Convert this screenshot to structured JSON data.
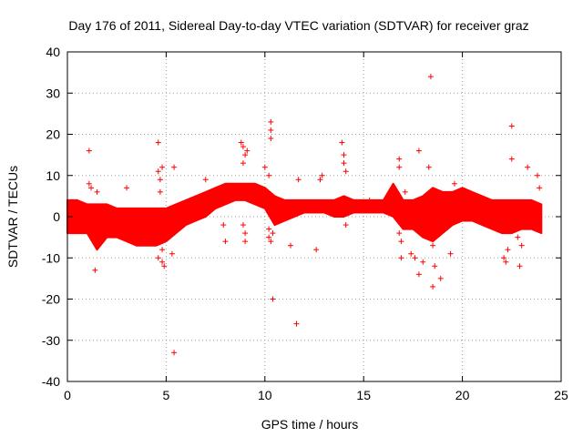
{
  "chart_data": {
    "type": "scatter",
    "title": "Day 176 of 2011, Sidereal Day-to-day VTEC variation (SDTVAR) for receiver graz",
    "xlabel": "GPS time / hours",
    "ylabel": "SDTVAR / TECUs",
    "xlim": [
      0,
      25
    ],
    "ylim": [
      -40,
      40
    ],
    "x_ticks": [
      0,
      5,
      10,
      15,
      20,
      25
    ],
    "x_tick_labels": [
      "0",
      "5",
      "10",
      "15",
      "20",
      "25"
    ],
    "y_ticks": [
      -40,
      -30,
      -20,
      -10,
      0,
      10,
      20,
      30,
      40
    ],
    "y_tick_labels": [
      "-40",
      "-30",
      "-20",
      "-10",
      "0",
      "10",
      "20",
      "30",
      "40"
    ],
    "grid": true,
    "marker": "+",
    "color": "#ff0000",
    "series": [
      {
        "name": "SDTVAR",
        "band": [
          {
            "x": 0.0,
            "lo": -4,
            "hi": 4
          },
          {
            "x": 0.5,
            "lo": -4,
            "hi": 4
          },
          {
            "x": 1.0,
            "lo": -4,
            "hi": 3
          },
          {
            "x": 1.5,
            "lo": -8,
            "hi": 3
          },
          {
            "x": 2.0,
            "lo": -5,
            "hi": 3
          },
          {
            "x": 2.5,
            "lo": -5,
            "hi": 2
          },
          {
            "x": 3.0,
            "lo": -6,
            "hi": 2
          },
          {
            "x": 3.5,
            "lo": -7,
            "hi": 2
          },
          {
            "x": 4.0,
            "lo": -7,
            "hi": 2
          },
          {
            "x": 4.5,
            "lo": -7,
            "hi": 2
          },
          {
            "x": 5.0,
            "lo": -6,
            "hi": 2
          },
          {
            "x": 5.5,
            "lo": -4,
            "hi": 3
          },
          {
            "x": 6.0,
            "lo": -2,
            "hi": 4
          },
          {
            "x": 6.5,
            "lo": -1,
            "hi": 5
          },
          {
            "x": 7.0,
            "lo": 0,
            "hi": 6
          },
          {
            "x": 7.5,
            "lo": 2,
            "hi": 7
          },
          {
            "x": 8.0,
            "lo": 3,
            "hi": 8
          },
          {
            "x": 8.5,
            "lo": 4,
            "hi": 8
          },
          {
            "x": 9.0,
            "lo": 4,
            "hi": 8
          },
          {
            "x": 9.5,
            "lo": 3,
            "hi": 8
          },
          {
            "x": 10.0,
            "lo": 2,
            "hi": 7
          },
          {
            "x": 10.5,
            "lo": -2,
            "hi": 5
          },
          {
            "x": 11.0,
            "lo": -1,
            "hi": 4
          },
          {
            "x": 11.5,
            "lo": 0,
            "hi": 4
          },
          {
            "x": 12.0,
            "lo": 1,
            "hi": 4
          },
          {
            "x": 12.5,
            "lo": 1,
            "hi": 4
          },
          {
            "x": 13.0,
            "lo": 1,
            "hi": 4
          },
          {
            "x": 13.5,
            "lo": 0,
            "hi": 4
          },
          {
            "x": 14.0,
            "lo": 0,
            "hi": 5
          },
          {
            "x": 14.5,
            "lo": 1,
            "hi": 4
          },
          {
            "x": 15.0,
            "lo": 1,
            "hi": 4
          },
          {
            "x": 15.5,
            "lo": 1,
            "hi": 4
          },
          {
            "x": 16.0,
            "lo": 1,
            "hi": 4
          },
          {
            "x": 16.5,
            "lo": 0,
            "hi": 8
          },
          {
            "x": 17.0,
            "lo": -3,
            "hi": 4
          },
          {
            "x": 17.5,
            "lo": -3,
            "hi": 4
          },
          {
            "x": 18.0,
            "lo": -5,
            "hi": 5
          },
          {
            "x": 18.5,
            "lo": -6,
            "hi": 7
          },
          {
            "x": 19.0,
            "lo": -4,
            "hi": 6
          },
          {
            "x": 19.5,
            "lo": -2,
            "hi": 6
          },
          {
            "x": 20.0,
            "lo": -1,
            "hi": 7
          },
          {
            "x": 20.5,
            "lo": -1,
            "hi": 6
          },
          {
            "x": 21.0,
            "lo": -2,
            "hi": 5
          },
          {
            "x": 21.5,
            "lo": -3,
            "hi": 4
          },
          {
            "x": 22.0,
            "lo": -4,
            "hi": 4
          },
          {
            "x": 22.5,
            "lo": -4,
            "hi": 4
          },
          {
            "x": 23.0,
            "lo": -3,
            "hi": 4
          },
          {
            "x": 23.5,
            "lo": -3,
            "hi": 4
          },
          {
            "x": 24.0,
            "lo": -4,
            "hi": 3
          }
        ],
        "points": [
          {
            "x": 1.1,
            "y": 16
          },
          {
            "x": 1.1,
            "y": 8
          },
          {
            "x": 1.2,
            "y": 7
          },
          {
            "x": 1.4,
            "y": -13
          },
          {
            "x": 1.5,
            "y": 6
          },
          {
            "x": 3.0,
            "y": 7
          },
          {
            "x": 4.6,
            "y": 18
          },
          {
            "x": 4.6,
            "y": 11
          },
          {
            "x": 4.7,
            "y": 9
          },
          {
            "x": 4.8,
            "y": 12
          },
          {
            "x": 4.7,
            "y": 6
          },
          {
            "x": 4.6,
            "y": -10
          },
          {
            "x": 4.8,
            "y": -11
          },
          {
            "x": 4.9,
            "y": -12
          },
          {
            "x": 4.8,
            "y": -8
          },
          {
            "x": 5.4,
            "y": 12
          },
          {
            "x": 5.3,
            "y": -9
          },
          {
            "x": 5.4,
            "y": -33
          },
          {
            "x": 7.0,
            "y": 9
          },
          {
            "x": 7.9,
            "y": -2
          },
          {
            "x": 8.0,
            "y": -6
          },
          {
            "x": 8.8,
            "y": 18
          },
          {
            "x": 8.9,
            "y": 17
          },
          {
            "x": 8.9,
            "y": 13
          },
          {
            "x": 9.0,
            "y": 15
          },
          {
            "x": 9.1,
            "y": 16
          },
          {
            "x": 8.9,
            "y": -2
          },
          {
            "x": 9.0,
            "y": -4
          },
          {
            "x": 9.0,
            "y": -6
          },
          {
            "x": 10.0,
            "y": 12
          },
          {
            "x": 10.2,
            "y": 10
          },
          {
            "x": 10.3,
            "y": 23
          },
          {
            "x": 10.3,
            "y": 21
          },
          {
            "x": 10.3,
            "y": 19
          },
          {
            "x": 10.4,
            "y": -20
          },
          {
            "x": 10.2,
            "y": -3
          },
          {
            "x": 10.2,
            "y": -5
          },
          {
            "x": 10.3,
            "y": -6
          },
          {
            "x": 10.4,
            "y": -4
          },
          {
            "x": 11.3,
            "y": -7
          },
          {
            "x": 11.6,
            "y": -26
          },
          {
            "x": 11.7,
            "y": 9
          },
          {
            "x": 12.6,
            "y": -8
          },
          {
            "x": 12.8,
            "y": 9
          },
          {
            "x": 12.9,
            "y": 10
          },
          {
            "x": 13.9,
            "y": 18
          },
          {
            "x": 14.0,
            "y": 15
          },
          {
            "x": 14.0,
            "y": 13
          },
          {
            "x": 14.1,
            "y": 11
          },
          {
            "x": 14.1,
            "y": -2
          },
          {
            "x": 15.3,
            "y": 4
          },
          {
            "x": 16.8,
            "y": 12
          },
          {
            "x": 16.8,
            "y": 14
          },
          {
            "x": 16.8,
            "y": -4
          },
          {
            "x": 16.9,
            "y": -6
          },
          {
            "x": 16.9,
            "y": -10
          },
          {
            "x": 17.1,
            "y": 6
          },
          {
            "x": 17.4,
            "y": -9
          },
          {
            "x": 17.6,
            "y": -10
          },
          {
            "x": 17.8,
            "y": 16
          },
          {
            "x": 17.8,
            "y": -14
          },
          {
            "x": 18.0,
            "y": -11
          },
          {
            "x": 18.4,
            "y": 34
          },
          {
            "x": 18.3,
            "y": 12
          },
          {
            "x": 18.4,
            "y": -4
          },
          {
            "x": 18.5,
            "y": -7
          },
          {
            "x": 18.5,
            "y": -17
          },
          {
            "x": 18.6,
            "y": -12
          },
          {
            "x": 18.9,
            "y": -15
          },
          {
            "x": 19.4,
            "y": -9
          },
          {
            "x": 19.6,
            "y": 8
          },
          {
            "x": 22.1,
            "y": -10
          },
          {
            "x": 22.2,
            "y": -11
          },
          {
            "x": 22.3,
            "y": -8
          },
          {
            "x": 22.5,
            "y": 14
          },
          {
            "x": 22.5,
            "y": 22
          },
          {
            "x": 22.8,
            "y": -5
          },
          {
            "x": 22.9,
            "y": -12
          },
          {
            "x": 23.0,
            "y": -7
          },
          {
            "x": 23.3,
            "y": 12
          },
          {
            "x": 23.8,
            "y": 10
          },
          {
            "x": 23.9,
            "y": 7
          }
        ]
      }
    ]
  }
}
